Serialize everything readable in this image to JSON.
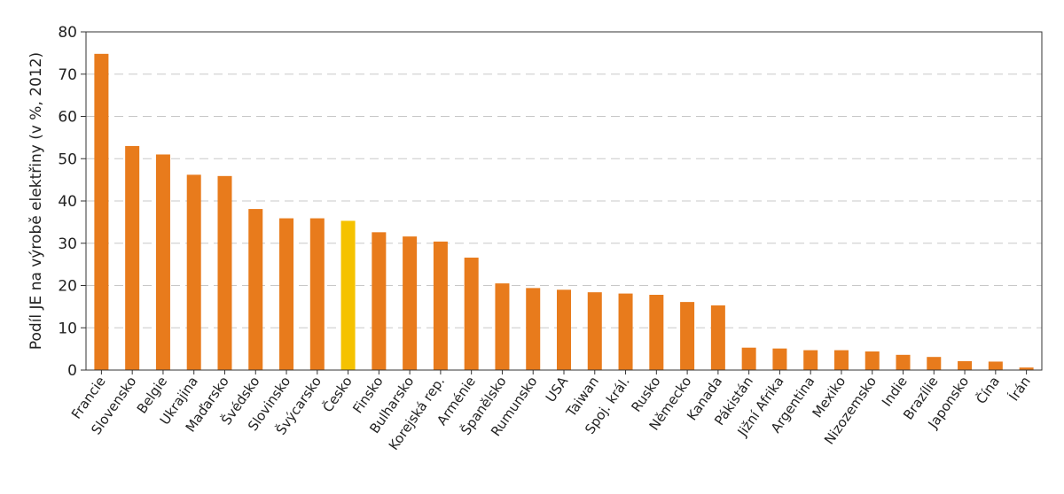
{
  "chart_data": {
    "type": "bar",
    "title": "",
    "xlabel": "",
    "ylabel": "Podíl JE na výrobě elektřiny (v %, 2012)",
    "ylim": [
      0,
      80
    ],
    "yticks": [
      0,
      10,
      20,
      30,
      40,
      50,
      60,
      70,
      80
    ],
    "grid": true,
    "categories": [
      "Francie",
      "Slovensko",
      "Belgie",
      "Ukrajina",
      "Maďarsko",
      "Švédsko",
      "Slovinsko",
      "Švýcarsko",
      "Česko",
      "Finsko",
      "Bulharsko",
      "Korejská rep.",
      "Arménie",
      "Španělsko",
      "Rumunsko",
      "USA",
      "Taiwan",
      "Spoj. král.",
      "Rusko",
      "Německo",
      "Kanada",
      "Pákistán",
      "Jižní Afrika",
      "Argentina",
      "Mexiko",
      "Nizozemsko",
      "Indie",
      "Brazílie",
      "Japonsko",
      "Čína",
      "Írán"
    ],
    "values": [
      74.8,
      53.0,
      51.0,
      46.2,
      45.9,
      38.1,
      35.9,
      35.9,
      35.3,
      32.6,
      31.6,
      30.4,
      26.6,
      20.5,
      19.4,
      19.0,
      18.4,
      18.1,
      17.8,
      16.1,
      15.3,
      5.3,
      5.1,
      4.7,
      4.7,
      4.4,
      3.6,
      3.1,
      2.1,
      2.0,
      0.6
    ],
    "colors": {
      "bar": "#e87b1c",
      "highlight": "#f5c200",
      "grid": "#c8c8c8",
      "axis": "#333333"
    },
    "highlight_category": "Česko"
  }
}
